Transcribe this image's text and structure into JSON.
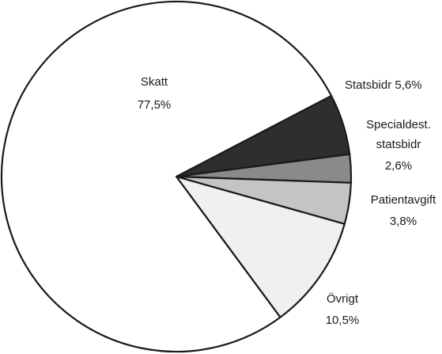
{
  "chart_data": {
    "type": "pie",
    "title": "",
    "slices": [
      {
        "label": "Skatt",
        "value": 77.5,
        "value_text": "77,5%",
        "fill": "#ffffff"
      },
      {
        "label": "Statsbidr",
        "value": 5.6,
        "value_text": "5,6%",
        "fill": "#2e2e2e"
      },
      {
        "label": "Specialdest. statsbidr",
        "value": 2.6,
        "value_text": "2,6%",
        "fill": "#8a8a8a"
      },
      {
        "label": "Patientavgift",
        "value": 3.8,
        "value_text": "3,8%",
        "fill": "#c4c4c4"
      },
      {
        "label": "Övrigt",
        "value": 10.5,
        "value_text": "10,5%",
        "fill": "#f0f0f0"
      }
    ],
    "labels": {
      "skatt_name": "Skatt",
      "skatt_value": "77,5%",
      "statsbidr": "Statsbidr 5,6%",
      "specialdest_line1": "Specialdest.",
      "specialdest_line2": "statsbidr",
      "specialdest_value": "2,6%",
      "patientavgift_name": "Patientavgift",
      "patientavgift_value": "3,8%",
      "ovrigt_name": "Övrigt",
      "ovrigt_value": "10,5%"
    }
  }
}
